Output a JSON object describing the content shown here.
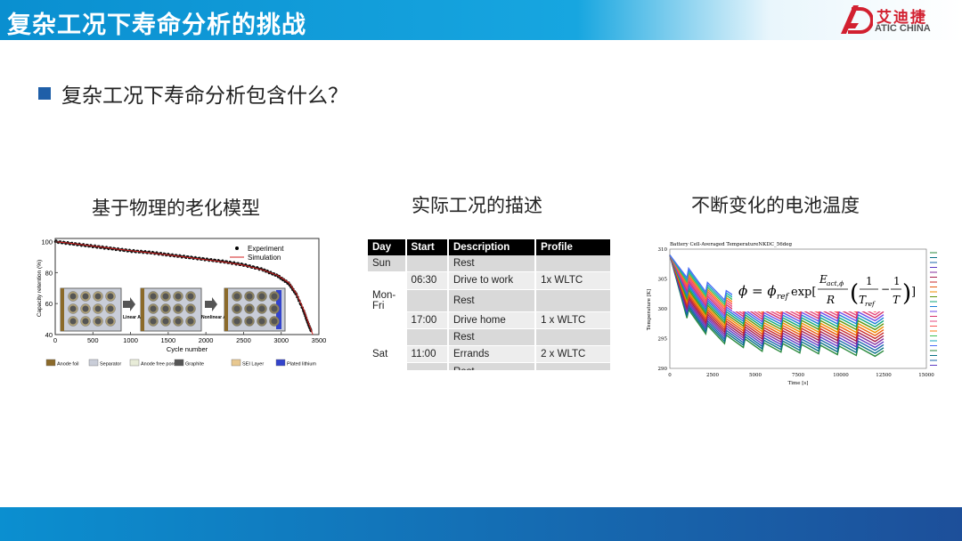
{
  "header": {
    "title": "复杂工况下寿命分析的挑战"
  },
  "logo": {
    "cn": "艾迪捷",
    "en": "ATIC CHINA"
  },
  "bullet": {
    "text": "复杂工况下寿命分析包含什么？"
  },
  "sections": [
    {
      "title": "基于物理的老化模型"
    },
    {
      "title": "实际工况的描述"
    },
    {
      "title": "不断变化的电池温度"
    }
  ],
  "aging_chart": {
    "ylabel": "Capacity retention (%)",
    "xlabel": "Cycle number",
    "xticks": [
      "0",
      "500",
      "1000",
      "1500",
      "2000",
      "2500",
      "3000",
      "3500"
    ],
    "yticks": [
      "40",
      "60",
      "80",
      "100"
    ],
    "legend": [
      "Experiment",
      "Simulation"
    ],
    "stage_labels": [
      "Linear Aging",
      "Nonlinear Aging"
    ],
    "bottom_legend": [
      "Anode foil",
      "Separator",
      "Anode free pores",
      "Graphite",
      "SEI Layer",
      "Plated lithium"
    ],
    "bottom_legend_colors": [
      "#8b6a2a",
      "#c9cdd8",
      "#e8ecd8",
      "#555555",
      "#e8c890",
      "#3344cc"
    ]
  },
  "chart_data": [
    {
      "type": "line",
      "xlabel": "Cycle number",
      "ylabel": "Capacity retention (%)",
      "xlim": [
        0,
        3500
      ],
      "ylim": [
        40,
        102
      ],
      "series": [
        {
          "name": "Experiment",
          "x": [
            0,
            250,
            500,
            750,
            1000,
            1250,
            1500,
            1750,
            2000,
            2250,
            2500,
            2750,
            2950,
            3100,
            3200,
            3300,
            3350,
            3400
          ],
          "y": [
            100,
            98.5,
            97,
            95.5,
            94,
            93,
            91.5,
            90,
            88.5,
            87,
            85,
            82,
            78,
            73,
            66,
            55,
            48,
            42
          ]
        },
        {
          "name": "Simulation",
          "x": [
            0,
            250,
            500,
            750,
            1000,
            1250,
            1500,
            1750,
            2000,
            2250,
            2500,
            2750,
            2950,
            3100,
            3200,
            3300,
            3350,
            3420
          ],
          "y": [
            100,
            98.6,
            97.1,
            95.6,
            94.1,
            92.8,
            91.4,
            89.9,
            88.3,
            86.7,
            84.8,
            81.8,
            78.2,
            73.5,
            66.5,
            56,
            49,
            40
          ]
        }
      ]
    },
    {
      "type": "line",
      "title": "Battery Cell-Averaged TemperatureNKDC_56deg",
      "xlabel": "Time [s]",
      "ylabel": "Temperature [K]",
      "xlim": [
        0,
        15000
      ],
      "ylim": [
        290,
        310
      ],
      "xticks": [
        "0",
        "2500",
        "5000",
        "7500",
        "10000",
        "12500",
        "15000"
      ],
      "yticks": [
        "290",
        "295",
        "300",
        "305",
        "310"
      ],
      "series": [
        {
          "x": [
            0,
            1000,
            1100,
            2100,
            2200,
            3200,
            3300,
            4300,
            4400,
            5400,
            5500,
            6500,
            6600,
            7600,
            7700,
            8700,
            8800,
            9800,
            9900,
            10900,
            11000,
            12000,
            12500
          ],
          "y": [
            309,
            302,
            303.5,
            299.5,
            301,
            298,
            299.5,
            297.5,
            299,
            297,
            298.5,
            297,
            298.5,
            297,
            298.5,
            297,
            298.5,
            297,
            298.5,
            297,
            298.5,
            297,
            298
          ]
        }
      ]
    }
  ],
  "schedule_table": {
    "headers": [
      "Day",
      "Start",
      "Description",
      "Profile"
    ],
    "rows": [
      {
        "day": "Sun",
        "start": "",
        "desc": "Rest",
        "profile": ""
      },
      {
        "day": "",
        "start": "06:30",
        "desc": "Drive to work",
        "profile": "1x WLTC"
      },
      {
        "day": "Mon-Fri",
        "start": "",
        "desc": "Rest",
        "profile": ""
      },
      {
        "day": "",
        "start": "17:00",
        "desc": "Drive home",
        "profile": "1 x WLTC"
      },
      {
        "day": "",
        "start": "",
        "desc": "Rest",
        "profile": ""
      },
      {
        "day": "Sat",
        "start": "11:00",
        "desc": "Errands",
        "profile": "2 x WLTC"
      },
      {
        "day": "",
        "start": "",
        "desc": "Rest",
        "profile": ""
      }
    ]
  },
  "temp_chart": {
    "title": "Battery Cell-Averaged TemperatureNKDC_56deg",
    "ylabel": "Temperature [K]",
    "xlabel": "Time [s]",
    "formula": "φ = φref exp[Eact,φ/R (1/Tref − 1/T)]"
  },
  "colors": {
    "header": "#0a8fd0",
    "bullet": "#1f5fa8",
    "footer": "#1d4f9a"
  }
}
